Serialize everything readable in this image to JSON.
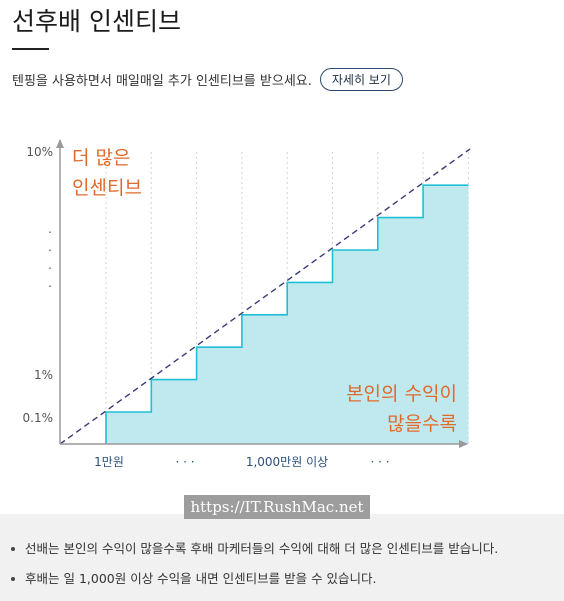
{
  "header": {
    "title": "선후배 인센티브"
  },
  "intro": {
    "text": "텐핑을 사용하면서 매일매일 추가 인센티브를 받으세요.",
    "detail_button_label": "자세히 보기"
  },
  "chart_data": {
    "type": "area",
    "y_tick_labels": [
      "10%",
      "1%",
      "0.1%"
    ],
    "y_ellipsis": ".",
    "x_tick_labels": [
      "1만원",
      "· · ·",
      "1,000만원 이상",
      "· · ·"
    ],
    "annotations": {
      "top_left": [
        "더 많은",
        "인센티브"
      ],
      "bottom_right": [
        "본인의 수익이",
        "많을수록"
      ]
    },
    "steps": [
      1,
      2,
      3,
      4,
      5,
      6,
      7,
      8
    ],
    "trend": "dashed-linear",
    "colors": {
      "area_fill": "#bfe9ef",
      "step_line": "#1ec0d6",
      "trend_line": "#3b3b7a",
      "annotation": "#e06a2c",
      "axis": "#999999",
      "x_labels": "#2a4f7c",
      "grid": "#d4d4d4"
    },
    "grid": "vertical-dotted"
  },
  "watermark": {
    "text": "https://IT.RushMac.net"
  },
  "notes": {
    "items": [
      "선배는 본인의 수익이 많을수록 후배 마케터들의 수익에 대해 더 많은 인센티브를 받습니다.",
      "후배는 일 1,000원 이상 수익을 내면 인센티브를 받을 수 있습니다."
    ]
  }
}
